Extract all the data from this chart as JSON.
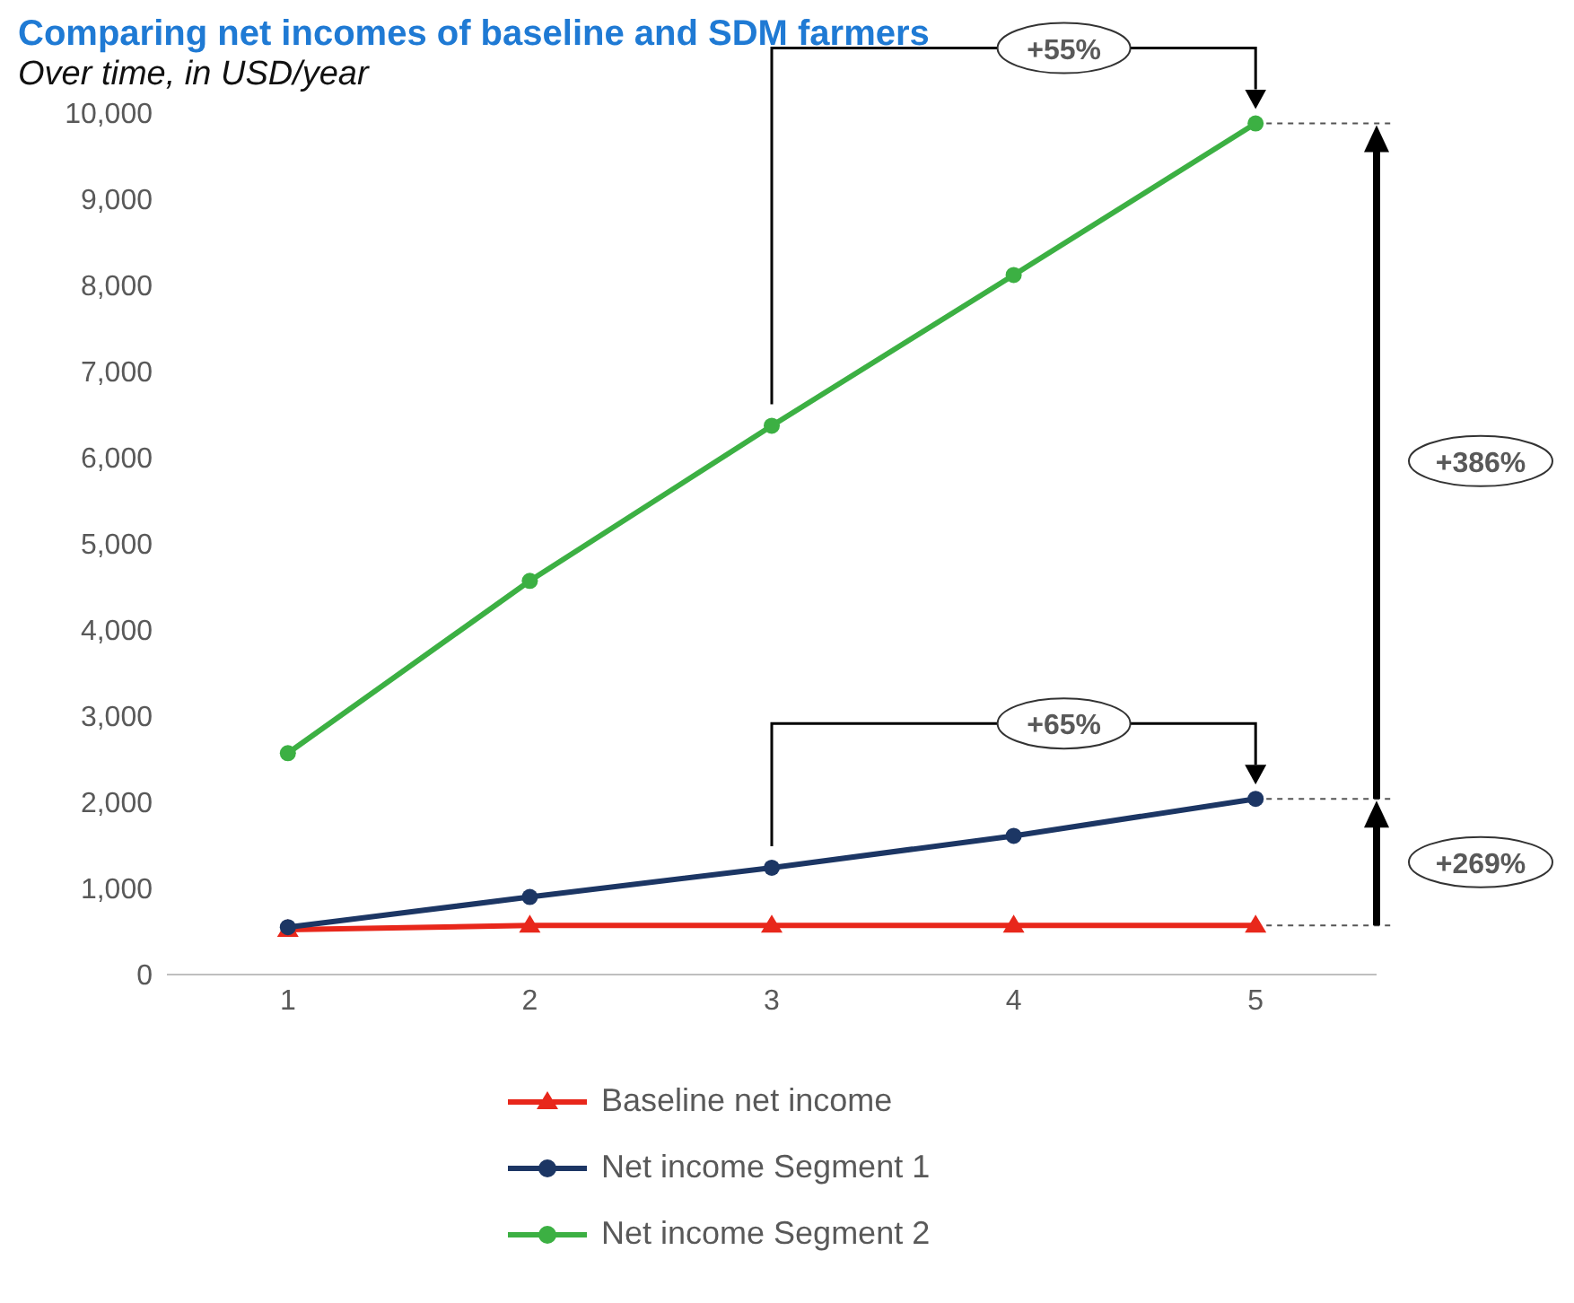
{
  "chart_data": {
    "type": "line",
    "title": "Comparing net incomes of baseline and SDM farmers",
    "subtitle": "Over time, in USD/year",
    "x": [
      1,
      2,
      3,
      4,
      5
    ],
    "xlim": [
      0.5,
      5.5
    ],
    "xticks": [
      1,
      2,
      3,
      4,
      5
    ],
    "ylim": [
      0,
      10000
    ],
    "yticks": [
      0,
      {
        "value": 1000,
        "label": "1,000"
      },
      {
        "value": 2000,
        "label": "2,000"
      },
      {
        "value": 3000,
        "label": "3,000"
      },
      {
        "value": 4000,
        "label": "4,000"
      },
      {
        "value": 5000,
        "label": "5,000"
      },
      {
        "value": 6000,
        "label": "6,000"
      },
      {
        "value": 7000,
        "label": "7,000"
      },
      {
        "value": 8000,
        "label": "8,000"
      },
      {
        "value": 9000,
        "label": "9,000"
      },
      {
        "value": 10000,
        "label": "10,000"
      }
    ],
    "series": [
      {
        "name": "Baseline net income",
        "color": "#e8271b",
        "marker": "triangle",
        "values": [
          520,
          570,
          570,
          570,
          570
        ]
      },
      {
        "name": "Net income Segment 1",
        "color": "#1c3664",
        "marker": "circle",
        "values": [
          550,
          900,
          1240,
          1610,
          2040
        ]
      },
      {
        "name": "Net income Segment 2",
        "color": "#3cb043",
        "marker": "circle",
        "values": [
          2570,
          4570,
          6370,
          8120,
          9880
        ]
      }
    ],
    "annotations": [
      "+55%",
      "+65%",
      "+386%",
      "+269%"
    ],
    "legend": "bottom"
  }
}
